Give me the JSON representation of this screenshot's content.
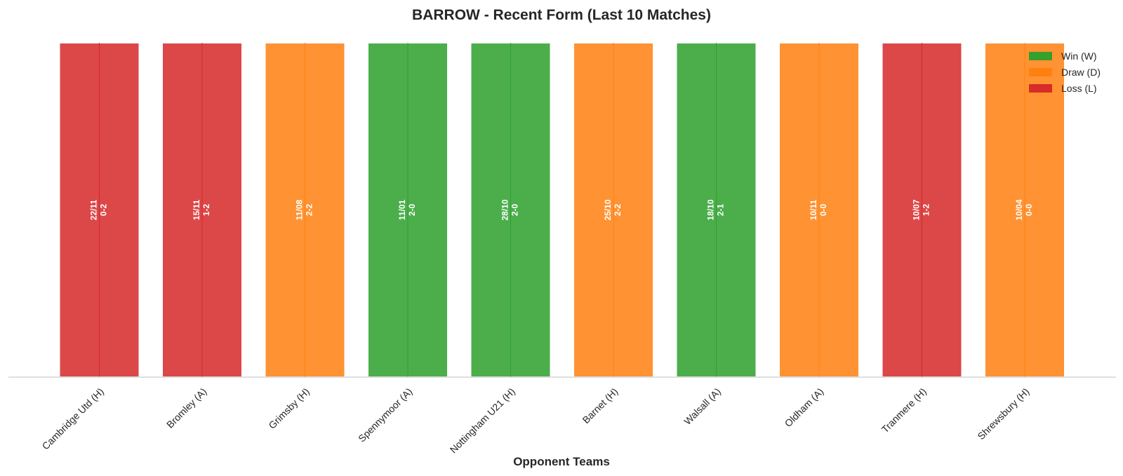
{
  "chart_data": {
    "type": "bar",
    "title": "BARROW - Recent Form (Last 10 Matches)",
    "xlabel": "Opponent Teams",
    "ylabel": "",
    "categories": [
      "Cambridge Utd (H)",
      "Bromley (A)",
      "Grimsby (H)",
      "Spennymoor (A)",
      "Nottingham U21 (H)",
      "Barnet (H)",
      "Walsall (A)",
      "Oldham (A)",
      "Tranmere (H)",
      "Shrewsbury (H)"
    ],
    "values": [
      1,
      1,
      1,
      1,
      1,
      1,
      1,
      1,
      1,
      1
    ],
    "results": [
      "L",
      "L",
      "D",
      "W",
      "W",
      "D",
      "W",
      "D",
      "L",
      "D"
    ],
    "dates": [
      "22/11",
      "15/11",
      "11/08",
      "11/01",
      "28/10",
      "25/10",
      "18/10",
      "10/11",
      "10/07",
      "10/04"
    ],
    "scores": [
      "0-2",
      "1-2",
      "2-2",
      "2-0",
      "2-0",
      "2-2",
      "2-1",
      "0-0",
      "1-2",
      "0-0"
    ],
    "ylim": [
      0,
      1
    ],
    "grid": false,
    "legend": {
      "placement": "top-right",
      "entries": [
        {
          "key": "W",
          "label": "Win (W)",
          "color": "#2ca02c"
        },
        {
          "key": "D",
          "label": "Draw (D)",
          "color": "#ff7f0e"
        },
        {
          "key": "L",
          "label": "Loss (L)",
          "color": "#d62728"
        }
      ]
    },
    "colors": {
      "W": "#2ca02c",
      "D": "#ff7f0e",
      "L": "#d62728"
    }
  }
}
